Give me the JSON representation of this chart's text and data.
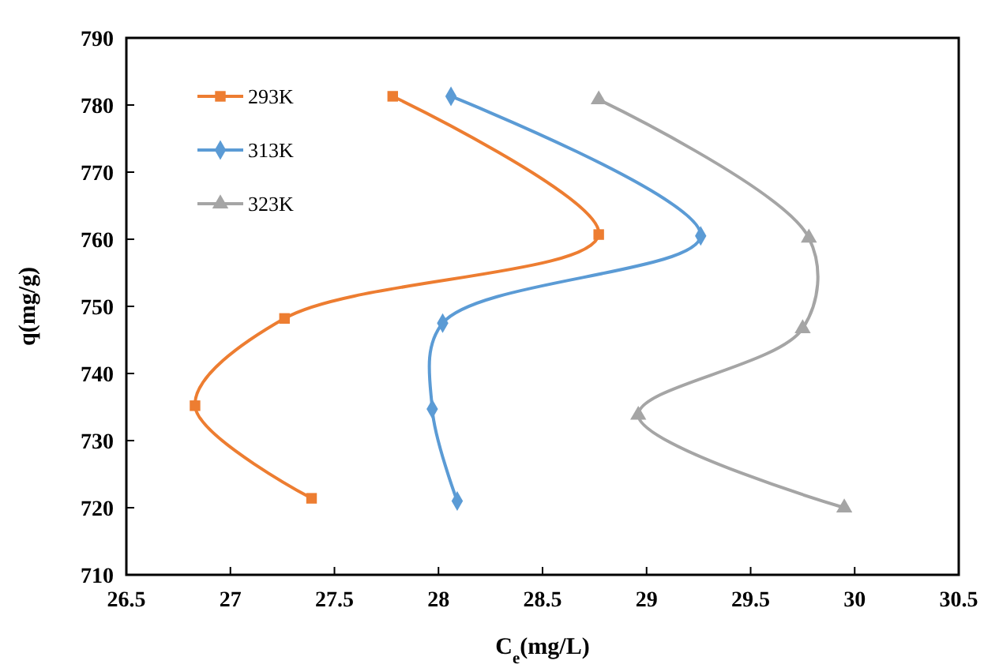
{
  "chart_data": {
    "type": "line",
    "xlabel": "C$_{e}$(mg/L)",
    "ylabel": "q(mg/g)",
    "xlim": [
      26.5,
      30.5
    ],
    "xticks": [
      26.5,
      27,
      27.5,
      28,
      28.5,
      29,
      29.5,
      30,
      30.5
    ],
    "ylim": [
      710,
      790
    ],
    "yticks": [
      710,
      720,
      730,
      740,
      750,
      760,
      770,
      780,
      790
    ],
    "grid": false,
    "legend": "top left",
    "series": [
      {
        "name": "293K",
        "color": "#ed7d31",
        "marker": "square",
        "x": [
          27.78,
          28.77,
          27.26,
          26.83,
          27.39
        ],
        "values": [
          781.3,
          760.7,
          748.2,
          735.2,
          721.4
        ]
      },
      {
        "name": "313K",
        "color": "#5b9bd5",
        "marker": "diamond",
        "x": [
          28.06,
          29.26,
          28.02,
          27.97,
          28.09
        ],
        "values": [
          781.3,
          760.5,
          747.5,
          734.7,
          721
        ]
      },
      {
        "name": "323K",
        "color": "#a5a5a5",
        "marker": "triangle",
        "x": [
          28.77,
          29.78,
          29.75,
          28.96,
          29.95
        ],
        "values": [
          780.8,
          760.2,
          746.7,
          733.8,
          720
        ]
      }
    ]
  }
}
